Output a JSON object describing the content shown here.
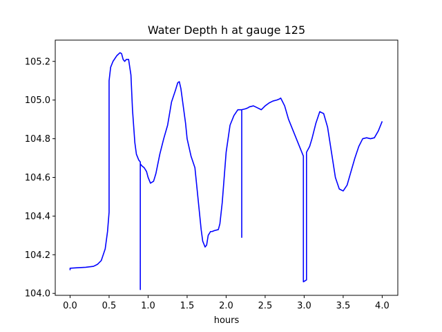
{
  "chart_data": {
    "type": "line",
    "title": "Water Depth h at gauge 125",
    "xlabel": "hours",
    "ylabel": "",
    "xlim": [
      -0.19,
      4.2
    ],
    "ylim": [
      103.99,
      105.31
    ],
    "xticks": [
      0.0,
      0.5,
      1.0,
      1.5,
      2.0,
      2.5,
      3.0,
      3.5,
      4.0
    ],
    "xtick_labels": [
      "0.0",
      "0.5",
      "1.0",
      "1.5",
      "2.0",
      "2.5",
      "3.0",
      "3.5",
      "4.0"
    ],
    "yticks": [
      104.0,
      104.2,
      104.4,
      104.6,
      104.8,
      105.0,
      105.2
    ],
    "ytick_labels": [
      "104.0",
      "104.2",
      "104.4",
      "104.6",
      "104.8",
      "105.0",
      "105.2"
    ],
    "grid": false,
    "series": [
      {
        "color": "#0000ff",
        "x": [
          0.0,
          0.0,
          0.1,
          0.2,
          0.3,
          0.35,
          0.4,
          0.45,
          0.48,
          0.5,
          0.5,
          0.52,
          0.55,
          0.6,
          0.64,
          0.66,
          0.68,
          0.7,
          0.72,
          0.75,
          0.78,
          0.8,
          0.83,
          0.85,
          0.88,
          0.9,
          0.9,
          0.9,
          0.92,
          0.95,
          0.98,
          1.0,
          1.03,
          1.07,
          1.1,
          1.15,
          1.2,
          1.25,
          1.3,
          1.35,
          1.38,
          1.4,
          1.42,
          1.45,
          1.48,
          1.5,
          1.55,
          1.6,
          1.65,
          1.68,
          1.7,
          1.73,
          1.75,
          1.77,
          1.8,
          1.82,
          1.85,
          1.9,
          1.92,
          1.95,
          2.0,
          2.05,
          2.1,
          2.15,
          2.2,
          2.2,
          2.2,
          2.2,
          2.25,
          2.28,
          2.3,
          2.35,
          2.4,
          2.45,
          2.5,
          2.55,
          2.6,
          2.65,
          2.68,
          2.7,
          2.75,
          2.8,
          2.85,
          2.9,
          2.95,
          2.98,
          2.99,
          2.99,
          3.03,
          3.03,
          3.03,
          3.07,
          3.1,
          3.15,
          3.2,
          3.25,
          3.3,
          3.35,
          3.4,
          3.45,
          3.5,
          3.55,
          3.6,
          3.65,
          3.7,
          3.75,
          3.8,
          3.85,
          3.9,
          3.95,
          4.0
        ],
        "y": [
          104.12,
          104.13,
          104.133,
          104.135,
          104.14,
          104.15,
          104.17,
          104.23,
          104.32,
          104.42,
          105.1,
          105.17,
          105.2,
          105.23,
          105.245,
          105.24,
          105.21,
          105.2,
          105.21,
          105.21,
          105.13,
          104.95,
          104.78,
          104.72,
          104.69,
          104.68,
          104.02,
          104.67,
          104.66,
          104.65,
          104.63,
          104.6,
          104.57,
          104.58,
          104.62,
          104.72,
          104.8,
          104.87,
          104.99,
          105.05,
          105.09,
          105.095,
          105.06,
          104.97,
          104.88,
          104.8,
          104.71,
          104.65,
          104.45,
          104.33,
          104.27,
          104.24,
          104.25,
          104.3,
          104.32,
          104.32,
          104.325,
          104.33,
          104.36,
          104.47,
          104.73,
          104.87,
          104.92,
          104.95,
          104.95,
          104.29,
          104.95,
          104.95,
          104.955,
          104.96,
          104.965,
          104.97,
          104.96,
          104.95,
          104.97,
          104.985,
          104.995,
          105.0,
          105.005,
          105.01,
          104.97,
          104.9,
          104.85,
          104.8,
          104.75,
          104.72,
          104.71,
          104.06,
          104.07,
          104.72,
          104.73,
          104.76,
          104.8,
          104.88,
          104.94,
          104.93,
          104.86,
          104.73,
          104.6,
          104.54,
          104.53,
          104.56,
          104.63,
          104.7,
          104.76,
          104.8,
          104.805,
          104.8,
          104.805,
          104.84,
          104.89
        ]
      }
    ]
  }
}
